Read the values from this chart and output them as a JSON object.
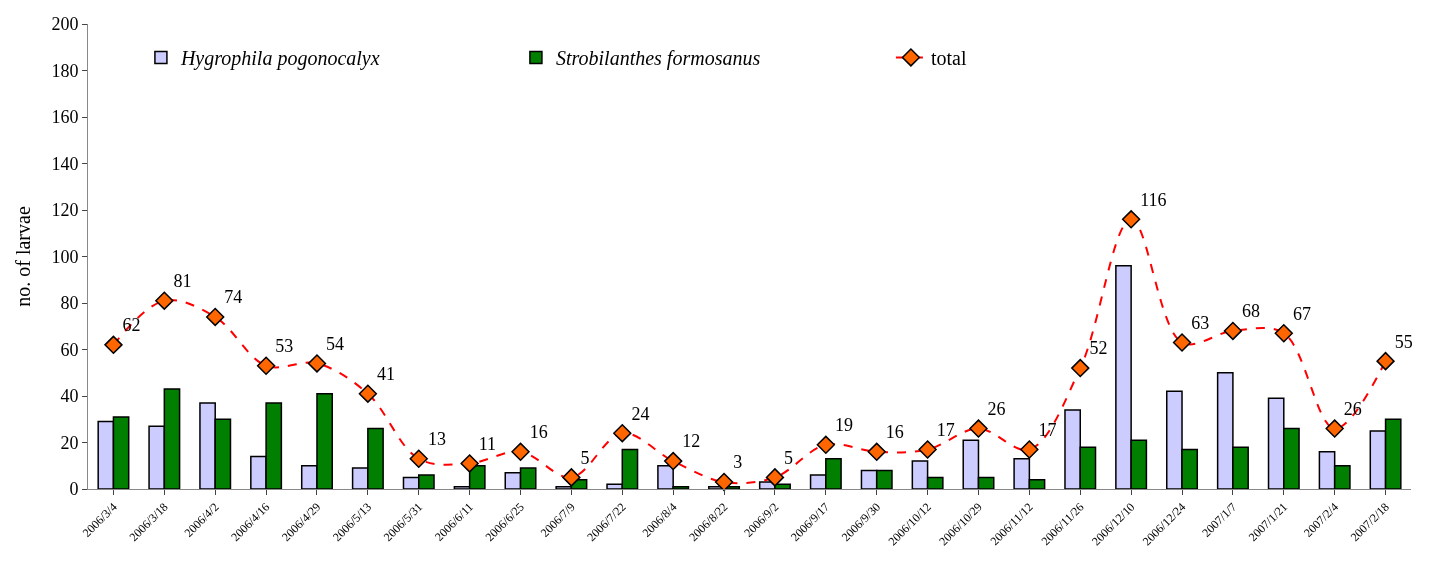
{
  "chart_data": {
    "type": "bar",
    "ylabel": "no. of larvae",
    "categories": [
      "2006/3/4",
      "2006/3/18",
      "2006/4/2",
      "2006/4/16",
      "2006/4/29",
      "2006/5/13",
      "2006/5/31",
      "2006/6/11",
      "2006/6/25",
      "2006/7/9",
      "2006/7/22",
      "2006/8/4",
      "2006/8/22",
      "2006/9/2",
      "2006/9/17",
      "2006/9/30",
      "2006/10/12",
      "2006/10/29",
      "2006/11/12",
      "2006/11/26",
      "2006/12/10",
      "2006/12/24",
      "2007/1/7",
      "2007/1/21",
      "2007/2/4",
      "2007/2/18"
    ],
    "series": [
      {
        "name": "Hygrophila pogonocalyx",
        "color": "#ccccff",
        "values": [
          29,
          27,
          37,
          14,
          10,
          9,
          5,
          1,
          7,
          1,
          2,
          10,
          1,
          3,
          6,
          8,
          12,
          21,
          13,
          34,
          96,
          42,
          50,
          39,
          16,
          25
        ]
      },
      {
        "name": "Strobilanthes formosanus",
        "color": "#007f00",
        "values": [
          31,
          43,
          30,
          37,
          41,
          26,
          6,
          10,
          9,
          4,
          17,
          1,
          1,
          2,
          13,
          8,
          5,
          5,
          4,
          18,
          21,
          17,
          18,
          26,
          10,
          30
        ]
      },
      {
        "name": "total",
        "type": "line",
        "color": "#ff0000",
        "marker": "diamond",
        "line_style": "dashed",
        "values": [
          62,
          81,
          74,
          53,
          54,
          41,
          13,
          11,
          16,
          5,
          24,
          12,
          3,
          5,
          19,
          16,
          17,
          26,
          17,
          52,
          116,
          63,
          68,
          67,
          26,
          55
        ],
        "value_labels": [
          "62",
          "81",
          "74",
          "53",
          "54",
          "41",
          "13",
          "11",
          "16",
          "5",
          "24",
          "12",
          "3",
          "5",
          "19",
          "16",
          "17",
          "26",
          "17",
          "52",
          "116",
          "63",
          "68",
          "67",
          "26",
          "55"
        ]
      }
    ],
    "ylim": [
      0,
      200
    ],
    "yticks": [
      0,
      20,
      40,
      60,
      80,
      100,
      120,
      140,
      160,
      180,
      200
    ],
    "legend": "top"
  }
}
